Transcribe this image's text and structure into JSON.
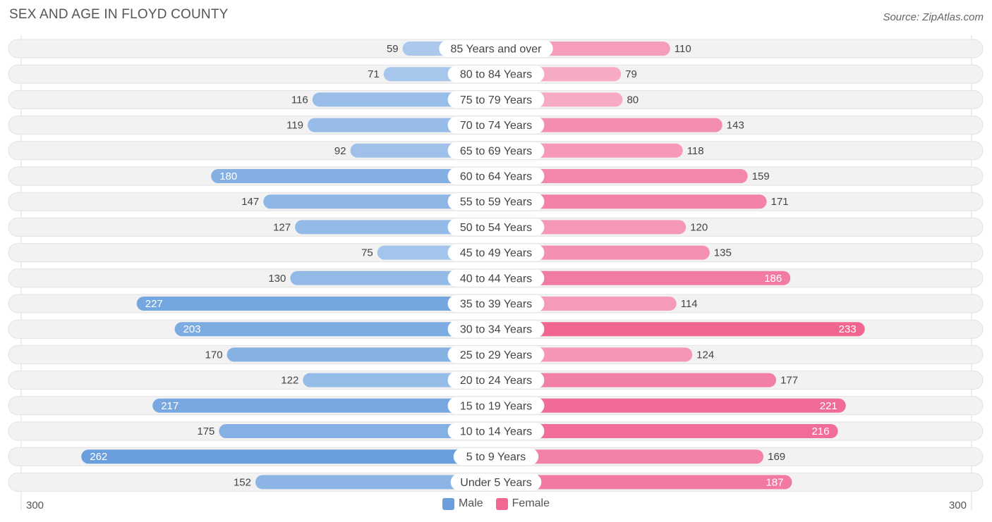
{
  "title": "SEX AND AGE IN FLOYD COUNTY",
  "source": "Source: ZipAtlas.com",
  "legend": {
    "male": "Male",
    "female": "Female"
  },
  "colors": {
    "male_light": "#a9c8ec",
    "male_dark": "#6a9fdc",
    "female_light": "#f7aac4",
    "female_dark": "#f06792",
    "row_bg": "#f2f2f2"
  },
  "chart_data": {
    "type": "bar",
    "orientation": "horizontal-diverging",
    "categories": [
      "85 Years and over",
      "80 to 84 Years",
      "75 to 79 Years",
      "70 to 74 Years",
      "65 to 69 Years",
      "60 to 64 Years",
      "55 to 59 Years",
      "50 to 54 Years",
      "45 to 49 Years",
      "40 to 44 Years",
      "35 to 39 Years",
      "30 to 34 Years",
      "25 to 29 Years",
      "20 to 24 Years",
      "15 to 19 Years",
      "10 to 14 Years",
      "5 to 9 Years",
      "Under 5 Years"
    ],
    "series": [
      {
        "name": "Male",
        "values": [
          59,
          71,
          116,
          119,
          92,
          180,
          147,
          127,
          75,
          130,
          227,
          203,
          170,
          122,
          217,
          175,
          262,
          152
        ]
      },
      {
        "name": "Female",
        "values": [
          110,
          79,
          80,
          143,
          118,
          159,
          171,
          120,
          135,
          186,
          114,
          233,
          124,
          177,
          221,
          216,
          169,
          187
        ]
      }
    ],
    "xlim": [
      -300,
      300
    ],
    "axis_labels": {
      "left": "300",
      "right": "300"
    },
    "legend_position": "bottom-center"
  }
}
